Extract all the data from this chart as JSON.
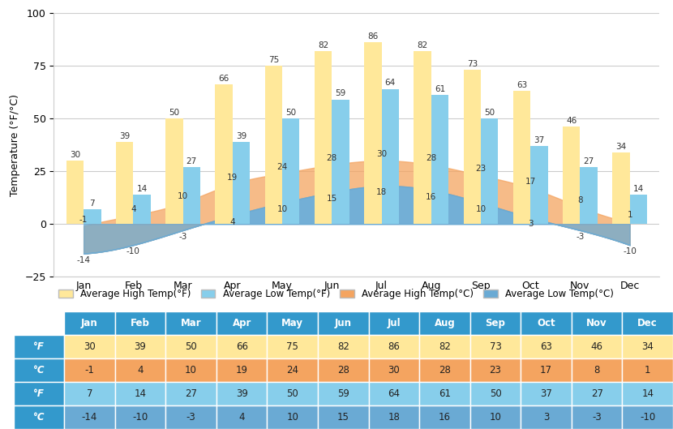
{
  "months": [
    "Jan",
    "Feb",
    "Mar",
    "Apr",
    "May",
    "Jun",
    "Jul",
    "Aug",
    "Sep",
    "Oct",
    "Nov",
    "Dec"
  ],
  "high_F": [
    30,
    39,
    50,
    66,
    75,
    82,
    86,
    82,
    73,
    63,
    46,
    34
  ],
  "high_C": [
    -1,
    4,
    10,
    19,
    24,
    28,
    30,
    28,
    23,
    17,
    8,
    1
  ],
  "low_F": [
    7,
    14,
    27,
    39,
    50,
    59,
    64,
    61,
    50,
    37,
    27,
    14
  ],
  "low_C": [
    -14,
    -10,
    -3,
    4,
    10,
    15,
    18,
    16,
    10,
    3,
    -3,
    -10
  ],
  "bar_high_F_color": "#FFE89A",
  "bar_low_F_color": "#87CEEB",
  "fill_high_C_color": "#F4A460",
  "fill_low_C_color": "#6aaad4",
  "fill_high_C_alpha": 0.75,
  "fill_low_C_alpha": 0.75,
  "ylim": [
    -25,
    100
  ],
  "yticks": [
    -25,
    0,
    25,
    50,
    75,
    100
  ],
  "ylabel": "Temperature (°F/°C)",
  "grid_color": "#cccccc",
  "bar_width": 0.35,
  "header_bg": "#3399CC",
  "header_fg": "#FFFFFF",
  "row1_bg": "#FFE89A",
  "row2_bg": "#F4A460",
  "row3_bg": "#87CEEB",
  "row4_bg": "#6aaad4",
  "legend_labels": [
    "Average High Temp(°F)",
    "Average Low Temp(°F)",
    "Average High Temp(°C)",
    "Average Low Temp(°C)"
  ]
}
